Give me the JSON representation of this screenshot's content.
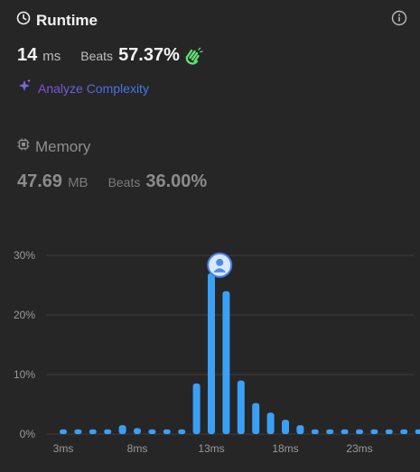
{
  "runtime": {
    "title": "Runtime",
    "value": "14",
    "unit": "ms",
    "beats_label": "Beats",
    "beats_value": "57.37%",
    "analyze_label": "Analyze Complexity"
  },
  "memory": {
    "title": "Memory",
    "value": "47.69",
    "unit": "MB",
    "beats_label": "Beats",
    "beats_value": "36.00%"
  },
  "colors": {
    "bar": "#3aa0f5",
    "bar_highlight": "#3aa0f5",
    "grid": "#3e3e3e",
    "avatar": "#3d7fe6"
  },
  "icons": {
    "runtime": "clock-icon",
    "info": "info-icon",
    "beats": "clapping-hands-icon",
    "analyze": "sparkle-icon",
    "memory": "chip-icon",
    "marker": "user-avatar-icon"
  },
  "chart_data": {
    "type": "bar",
    "x": [
      3,
      4,
      5,
      6,
      7,
      8,
      9,
      10,
      11,
      12,
      13,
      14,
      15,
      16,
      17,
      18,
      19,
      20,
      21,
      22,
      23,
      24,
      25,
      26,
      27
    ],
    "values": [
      0.8,
      0.8,
      0.8,
      0.8,
      1.5,
      1.0,
      0.8,
      0.8,
      0.8,
      8.5,
      27.0,
      24.0,
      9.0,
      5.2,
      3.6,
      2.4,
      1.5,
      0.8,
      0.8,
      0.8,
      0.8,
      0.8,
      0.8,
      0.8,
      0.8
    ],
    "highlight_x": 14,
    "ylim": [
      0,
      30
    ],
    "yticks": [
      "0%",
      "10%",
      "20%",
      "30%"
    ],
    "ytick_values": [
      0,
      10,
      20,
      30
    ],
    "xticks": [
      "3ms",
      "8ms",
      "13ms",
      "18ms",
      "23ms"
    ],
    "xtick_values": [
      3,
      8,
      13,
      18,
      23
    ],
    "grid": true
  }
}
